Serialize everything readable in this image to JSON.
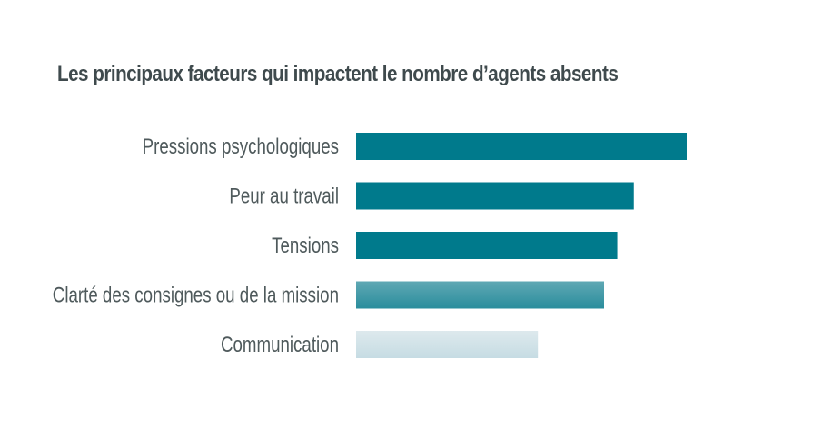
{
  "chart_data": {
    "type": "bar",
    "orientation": "horizontal",
    "title": "Les principaux facteurs qui impactent le nombre d’agents absents",
    "categories": [
      "Pressions psychologiques",
      "Peur au travail",
      "Tensions",
      "Clarté des consignes ou de la mission",
      "Communication"
    ],
    "values": [
      100,
      84,
      79,
      75,
      55
    ],
    "xlim": [
      0,
      100
    ],
    "grid": false,
    "legend": "none",
    "colors": {
      "primary": "#007a8c",
      "gradient_top": "#5fa8b4",
      "gradient_bottom": "#2a8d9c",
      "light_top": "#dde9ed",
      "light_bottom": "#c6dce3",
      "text": "#4f5a5c",
      "title": "#3f4a4d"
    },
    "bar_styles": [
      "solid",
      "solid",
      "solid",
      "gradient",
      "light"
    ]
  }
}
